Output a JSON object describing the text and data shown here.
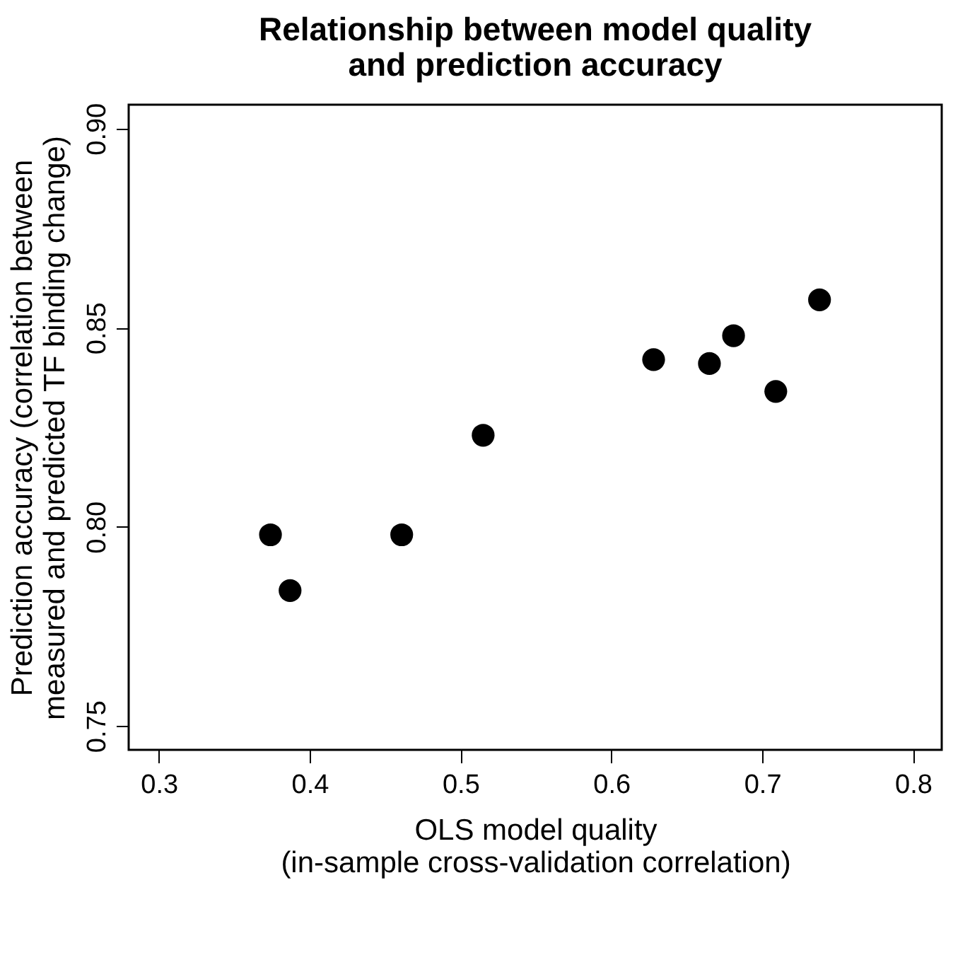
{
  "chart_data": {
    "type": "scatter",
    "title": "Relationship between model quality\nand prediction accuracy",
    "xlabel": "OLS model quality\n(in-sample cross-validation correlation)",
    "ylabel": "Prediction accuracy (correlation between\nmeasured and predicted TF  binding change)",
    "x": [
      0.374,
      0.387,
      0.461,
      0.515,
      0.628,
      0.665,
      0.681,
      0.709,
      0.738
    ],
    "series": [
      {
        "color": "#000000",
        "values": [
          0.798,
          0.784,
          0.798,
          0.823,
          0.842,
          0.841,
          0.848,
          0.834,
          0.857
        ]
      }
    ],
    "xlim": [
      0.28,
      0.819
    ],
    "xticks": [
      0.3,
      0.4,
      0.5,
      0.6,
      0.7,
      0.8
    ],
    "ylim": [
      0.744,
      0.906
    ],
    "yticks": [
      0.75,
      {
        "value": 0.8,
        "label": "0.80"
      },
      0.85,
      {
        "value": 0.9,
        "label": "0.90"
      }
    ],
    "grid": false,
    "legend": false,
    "marker": "circle"
  }
}
